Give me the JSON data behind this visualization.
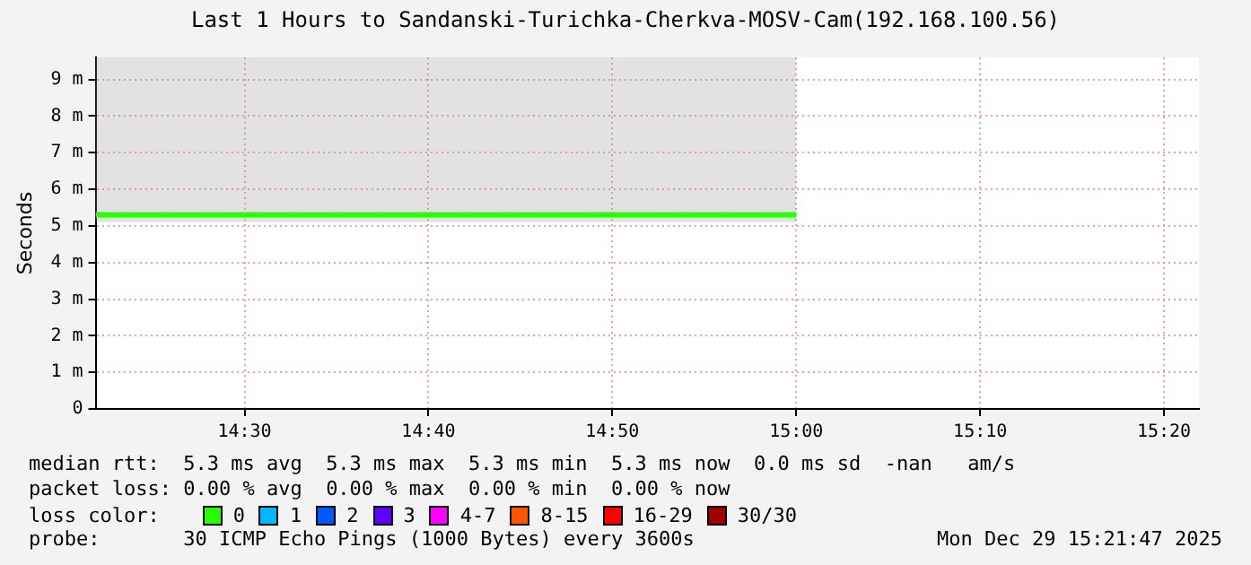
{
  "chart_data": {
    "type": "line",
    "title": "Last 1 Hours to Sandanski-Turichka-Cherkva-MOSV-Cam(192.168.100.56)",
    "ylabel": "Seconds",
    "legend_title": "loss color:",
    "legend": "bottom",
    "grid": true,
    "marker": "none",
    "line_style": "solid",
    "x": [
      14.365,
      15.0
    ],
    "xlim": [
      14.365,
      15.365
    ],
    "xticks": [
      {
        "value": 14.5,
        "label": "14:30"
      },
      {
        "value": 14.6667,
        "label": "14:40"
      },
      {
        "value": 14.8333,
        "label": "14:50"
      },
      {
        "value": 15.0,
        "label": "15:00"
      },
      {
        "value": 15.1667,
        "label": "15:10"
      },
      {
        "value": 15.3333,
        "label": "15:20"
      }
    ],
    "ylim": [
      0,
      9.6
    ],
    "yticks": [
      0,
      {
        "value": 1,
        "label": "1 m"
      },
      {
        "value": 2,
        "label": "2 m"
      },
      {
        "value": 3,
        "label": "3 m"
      },
      {
        "value": 4,
        "label": "4 m"
      },
      {
        "value": 5,
        "label": "5 m"
      },
      {
        "value": 6,
        "label": "6 m"
      },
      {
        "value": 7,
        "label": "7 m"
      },
      {
        "value": 8,
        "label": "8 m"
      },
      {
        "value": 9,
        "label": "9 m"
      }
    ],
    "series": [
      {
        "name": "0",
        "color": "#26ff00",
        "values": [
          5.3,
          5.3
        ],
        "lower": [
          5.1,
          5.1
        ],
        "upper": [
          9.6,
          9.6
        ]
      },
      {
        "name": "1",
        "color": "#00b8ff",
        "values": [
          null,
          null
        ]
      },
      {
        "name": "2",
        "color": "#0059ff",
        "values": [
          null,
          null
        ]
      },
      {
        "name": "3",
        "color": "#5e00ff",
        "values": [
          null,
          null
        ]
      },
      {
        "name": "4-7",
        "color": "#ff00ff",
        "values": [
          null,
          null
        ]
      },
      {
        "name": "8-15",
        "color": "#ff5500",
        "values": [
          null,
          null
        ]
      },
      {
        "name": "16-29",
        "color": "#ff0000",
        "values": [
          null,
          null
        ]
      },
      {
        "name": "30/30",
        "color": "#a10000",
        "values": [
          null,
          null
        ]
      }
    ],
    "annotations": [
      "median rtt:  5.3 ms avg  5.3 ms max  5.3 ms min  5.3 ms now  0.0 ms sd  -nan   am/s",
      "packet loss: 0.00 % avg  0.00 % max  0.00 % min  0.00 % now",
      "probe:       30 ICMP Echo Pings (1000 Bytes) every 3600s",
      "Mon Dec 29 15:21:47 2025"
    ]
  }
}
